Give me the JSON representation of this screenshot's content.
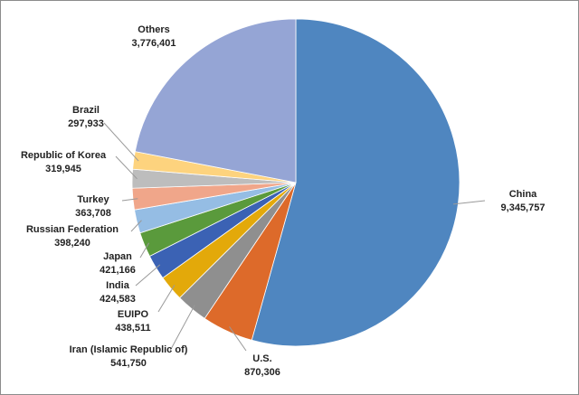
{
  "chart_data": {
    "type": "pie",
    "categories": [
      "China",
      "U.S.",
      "Iran (Islamic Republic of)",
      "EUIPO",
      "India",
      "Japan",
      "Russian Federation",
      "Turkey",
      "Republic of Korea",
      "Brazil",
      "Others"
    ],
    "values": [
      9345757,
      870306,
      541750,
      438511,
      424583,
      421166,
      398240,
      363708,
      319945,
      297933,
      3776401
    ],
    "value_labels": [
      "9,345,757",
      "870,306",
      "541,750",
      "438,511",
      "424,583",
      "421,166",
      "398,240",
      "363,708",
      "319,945",
      "297,933",
      "3,776,401"
    ],
    "colors": [
      "#4f86c0",
      "#dd6a2a",
      "#8f8f8f",
      "#e3a90a",
      "#3b62b4",
      "#5a9a3c",
      "#95bde4",
      "#f0a68a",
      "#bdbdbd",
      "#fdd37e",
      "#95a5d5"
    ]
  }
}
